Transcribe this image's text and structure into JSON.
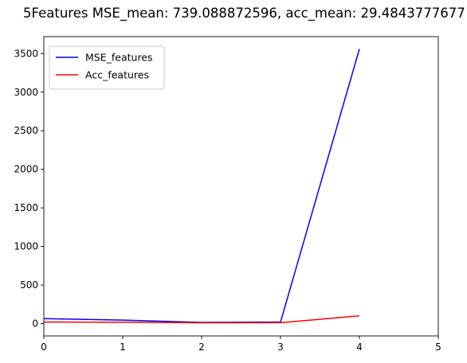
{
  "chart_data": {
    "type": "line",
    "title": "5Features MSE_mean: 739.088872596, acc_mean: 29.4843777677",
    "xlabel": "",
    "ylabel": "",
    "xlim": [
      0,
      5
    ],
    "ylim": [
      -160,
      3720
    ],
    "xticks": [
      0,
      1,
      2,
      3,
      4,
      5
    ],
    "yticks": [
      0,
      500,
      1000,
      1500,
      2000,
      2500,
      3000,
      3500
    ],
    "grid": false,
    "legend_position": "top-left",
    "series": [
      {
        "name": "MSE_features",
        "color": "#0000ff",
        "x": [
          0,
          1,
          2,
          3,
          4
        ],
        "values": [
          65,
          45,
          15,
          20,
          3560
        ]
      },
      {
        "name": "Acc_features",
        "color": "#ff0000",
        "x": [
          0,
          1,
          2,
          3,
          4
        ],
        "values": [
          20,
          18,
          10,
          12,
          100
        ]
      }
    ]
  }
}
